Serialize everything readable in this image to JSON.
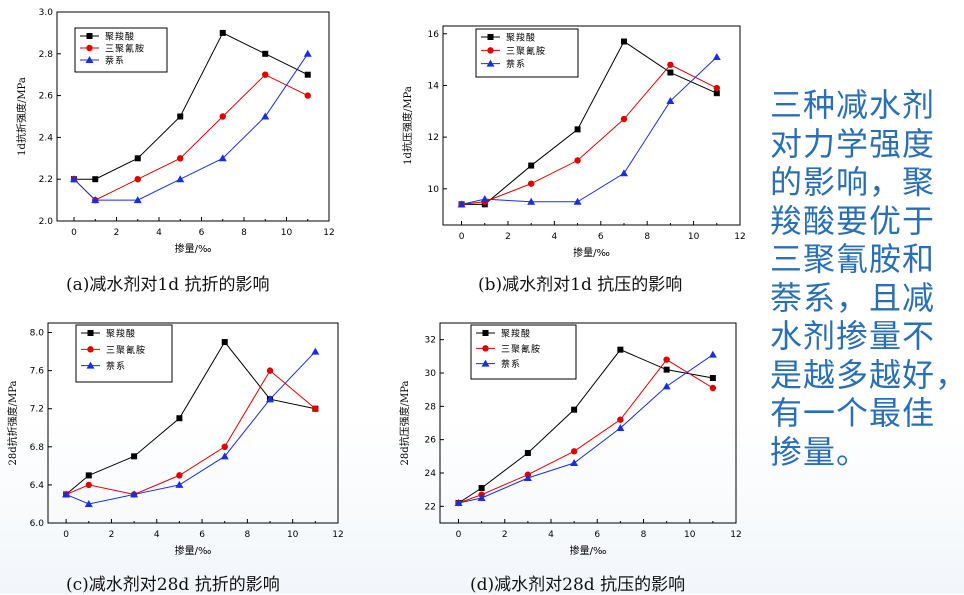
{
  "colors": {
    "black": "#000000",
    "red": "#e00000",
    "blue": "#1a2ee0",
    "side_text": "#2a6fb5"
  },
  "side_text": [
    "三种减水剂",
    "对力学强度",
    "的影响，聚",
    "羧酸要优于",
    "三聚氰胺和",
    "萘系，且减",
    "水剂掺量不",
    "是越多越好，",
    "有一个最佳",
    "掺量。"
  ],
  "chart_data": [
    {
      "type": "line",
      "caption": "(a)减水剂对1d 抗折的影响",
      "xlabel": "掺量/‰",
      "ylabel": "1d抗折强度/MPa",
      "xlim": [
        -0.8,
        12
      ],
      "ylim": [
        2.0,
        3.0
      ],
      "xticks": [
        0,
        2,
        4,
        6,
        8,
        10,
        12
      ],
      "yticks": [
        2.0,
        2.2,
        2.4,
        2.6,
        2.8,
        3.0
      ],
      "ytick_labels": [
        "2.0",
        "2.2",
        "2.4",
        "2.6",
        "2.8",
        "3.0"
      ],
      "x": [
        0,
        1,
        3,
        5,
        7,
        9,
        11
      ],
      "series": [
        {
          "name": "聚羧酸",
          "color": "#000000",
          "marker": "square",
          "values": [
            2.2,
            2.2,
            2.3,
            2.5,
            2.9,
            2.8,
            2.7
          ]
        },
        {
          "name": "三聚氰胺",
          "color": "#e00000",
          "marker": "circle",
          "values": [
            2.2,
            2.1,
            2.2,
            2.3,
            2.5,
            2.7,
            2.6
          ]
        },
        {
          "name": "萘系",
          "color": "#1a2ee0",
          "marker": "triangle",
          "values": [
            2.2,
            2.1,
            2.1,
            2.2,
            2.3,
            2.5,
            2.8
          ]
        }
      ]
    },
    {
      "type": "line",
      "caption": "(b)减水剂对1d 抗压的影响",
      "xlabel": "掺量/‰",
      "ylabel": "1d抗压强度/MPa",
      "xlim": [
        -0.8,
        12
      ],
      "ylim": [
        8.6,
        16.3
      ],
      "xticks": [
        0,
        2,
        4,
        6,
        8,
        10,
        12
      ],
      "yticks": [
        10,
        12,
        14,
        16
      ],
      "ytick_labels": [
        "10",
        "12",
        "14",
        "16"
      ],
      "x": [
        0,
        1,
        3,
        5,
        7,
        9,
        11
      ],
      "series": [
        {
          "name": "聚羧酸",
          "color": "#000000",
          "marker": "square",
          "values": [
            9.4,
            9.4,
            10.9,
            12.3,
            15.7,
            14.5,
            13.7
          ]
        },
        {
          "name": "三聚氰胺",
          "color": "#e00000",
          "marker": "circle",
          "values": [
            9.4,
            9.5,
            10.2,
            11.1,
            12.7,
            14.8,
            13.9
          ]
        },
        {
          "name": "萘系",
          "color": "#1a2ee0",
          "marker": "triangle",
          "values": [
            9.4,
            9.6,
            9.5,
            9.5,
            10.6,
            13.4,
            15.1
          ]
        }
      ]
    },
    {
      "type": "line",
      "caption": "(c)减水剂对28d 抗折的影响",
      "xlabel": "掺量/‰",
      "ylabel": "28d抗折强度/MPa",
      "xlim": [
        -0.8,
        12
      ],
      "ylim": [
        6.0,
        8.1
      ],
      "xticks": [
        0,
        2,
        4,
        6,
        8,
        10,
        12
      ],
      "yticks": [
        6.0,
        6.4,
        6.8,
        7.2,
        7.6,
        8.0
      ],
      "ytick_labels": [
        "6.0",
        "6.4",
        "6.8",
        "7.2",
        "7.6",
        "8.0"
      ],
      "x": [
        0,
        1,
        3,
        5,
        7,
        9,
        11
      ],
      "series": [
        {
          "name": "聚羧酸",
          "color": "#000000",
          "marker": "square",
          "values": [
            6.3,
            6.5,
            6.7,
            7.1,
            7.9,
            7.3,
            7.2
          ]
        },
        {
          "name": "三聚氰胺",
          "color": "#e00000",
          "marker": "circle",
          "values": [
            6.3,
            6.4,
            6.3,
            6.5,
            6.8,
            7.6,
            7.2
          ]
        },
        {
          "name": "萘系",
          "color": "#1a2ee0",
          "marker": "triangle",
          "values": [
            6.3,
            6.2,
            6.3,
            6.4,
            6.7,
            7.3,
            7.8
          ]
        }
      ]
    },
    {
      "type": "line",
      "caption": "(d)减水剂对28d 抗压的影响",
      "xlabel": "掺量/‰",
      "ylabel": "28d抗压强度/MPa",
      "xlim": [
        -0.8,
        12
      ],
      "ylim": [
        21.0,
        33.0
      ],
      "xticks": [
        0,
        2,
        4,
        6,
        8,
        10,
        12
      ],
      "yticks": [
        22,
        24,
        26,
        28,
        30,
        32
      ],
      "ytick_labels": [
        "22",
        "24",
        "26",
        "28",
        "30",
        "32"
      ],
      "x": [
        0,
        1,
        3,
        5,
        7,
        9,
        11
      ],
      "series": [
        {
          "name": "聚羧酸",
          "color": "#000000",
          "marker": "square",
          "values": [
            22.2,
            23.1,
            25.2,
            27.8,
            31.4,
            30.2,
            29.7
          ]
        },
        {
          "name": "三聚氰胺",
          "color": "#e00000",
          "marker": "circle",
          "values": [
            22.2,
            22.7,
            23.9,
            25.3,
            27.2,
            30.8,
            29.1
          ]
        },
        {
          "name": "萘系",
          "color": "#1a2ee0",
          "marker": "triangle",
          "values": [
            22.2,
            22.5,
            23.7,
            24.6,
            26.7,
            29.2,
            31.1
          ]
        }
      ]
    }
  ]
}
